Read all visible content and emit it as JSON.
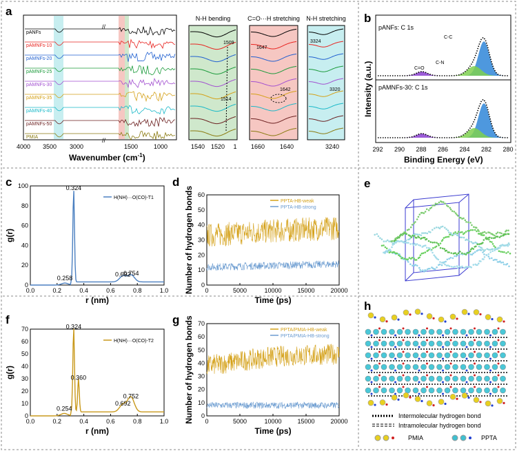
{
  "panel_labels": [
    "a",
    "b",
    "c",
    "d",
    "e",
    "f",
    "g",
    "h"
  ],
  "panel_a": {
    "samples": [
      {
        "name": "pANFs",
        "color": "#000000"
      },
      {
        "name": "pAMNFs-10",
        "color": "#e8231f"
      },
      {
        "name": "pAMNFs-20",
        "color": "#1f5fd0"
      },
      {
        "name": "pAMNFs-25",
        "color": "#1a9a3a"
      },
      {
        "name": "pAMNFs-30",
        "color": "#a24fd0"
      },
      {
        "name": "pAMNFs-35",
        "color": "#d4a017"
      },
      {
        "name": "pAMNFs-40",
        "color": "#18b8c8"
      },
      {
        "name": "pAMNFs-50",
        "color": "#6b1f1f"
      },
      {
        "name": "PMIA",
        "color": "#8a7a10"
      }
    ],
    "main_ticks": [
      "4000",
      "3500",
      "3000",
      "1500",
      "1000"
    ],
    "xlabel": "Wavenumber (cm",
    "xlabel_sup": "-1",
    "xlabel_end": ")",
    "zoom1": {
      "title": "N-H bending",
      "ticks": [
        "1540",
        "1520",
        "1"
      ],
      "ann": [
        "1509",
        "1514"
      ],
      "bg": "#cfe8cc"
    },
    "zoom2": {
      "title": "C=O···H stretching",
      "ticks": [
        "1660",
        "1640"
      ],
      "ann": [
        "1647",
        "1642"
      ],
      "bg": "#f6c7c2"
    },
    "zoom3": {
      "title": "N-H stretching",
      "ticks": [
        "3240"
      ],
      "ann": [
        "3324",
        "3320"
      ],
      "bg": "#c7eef0"
    }
  },
  "panel_b": {
    "top_label": "pANFs: C 1s",
    "bottom_label": "pAMNFs-30: C 1s",
    "peak_labels": [
      "C-C",
      "C-N",
      "C=O"
    ],
    "ylabel": "Intensity (a.u.)",
    "xlabel": "Binding Energy (eV)",
    "ticks": [
      "292",
      "290",
      "288",
      "286",
      "284",
      "282",
      "280"
    ]
  },
  "chart_data": [
    {
      "id": "c",
      "type": "line",
      "legend": "H(NH)···O(CO)-T1",
      "xlabel": "r (nm)",
      "ylabel": "g(r)",
      "xlim": [
        0.0,
        1.0
      ],
      "ylim": [
        0,
        100
      ],
      "xticks": [
        "0.0",
        "0.2",
        "0.4",
        "0.6",
        "0.8",
        "1.0"
      ],
      "yticks": [
        "0",
        "20",
        "40",
        "60",
        "80",
        "100"
      ],
      "peaks": [
        {
          "x": 0.258,
          "y": 2
        },
        {
          "x": 0.324,
          "y": 93
        },
        {
          "x": 0.692,
          "y": 6
        },
        {
          "x": 0.754,
          "y": 7
        }
      ],
      "peak_labels": [
        "0.258",
        "0.324",
        "0.692",
        "0.754"
      ],
      "color": "#4a7fc0"
    },
    {
      "id": "d",
      "type": "line",
      "series": [
        {
          "name": "PPTA-HB-weak",
          "mean": [
            33,
            36,
            38
          ],
          "color": "#d4a017"
        },
        {
          "name": "PPTA-HB-strong",
          "mean": [
            12,
            13,
            14
          ],
          "color": "#6a9bd0"
        }
      ],
      "xlabel": "Time (ps)",
      "ylabel": "Number of hydrogen bonds",
      "xlim": [
        0,
        20000
      ],
      "ylim": [
        0,
        60
      ],
      "xticks": [
        "0",
        "5000",
        "10000",
        "15000",
        "20000"
      ],
      "yticks": [
        "0",
        "10",
        "20",
        "30",
        "40",
        "50",
        "60"
      ]
    },
    {
      "id": "f",
      "type": "line",
      "legend": "H(NH)···O(CO)-T2",
      "xlabel": "r (nm)",
      "ylabel": "g(r)",
      "xlim": [
        0.0,
        1.0
      ],
      "ylim": [
        0,
        70
      ],
      "xticks": [
        "0.0",
        "0.2",
        "0.4",
        "0.6",
        "0.8",
        "1.0"
      ],
      "yticks": [
        "0",
        "10",
        "20",
        "30",
        "40",
        "50",
        "60",
        "70"
      ],
      "peaks": [
        {
          "x": 0.254,
          "y": 2
        },
        {
          "x": 0.324,
          "y": 68
        },
        {
          "x": 0.36,
          "y": 27
        },
        {
          "x": 0.692,
          "y": 6
        },
        {
          "x": 0.752,
          "y": 12
        }
      ],
      "peak_labels": [
        "0.254",
        "0.324",
        "0.360",
        "0.692",
        "0.752"
      ],
      "color": "#c8981a"
    },
    {
      "id": "g",
      "type": "line",
      "series": [
        {
          "name": "PPTA/PMIA-HB-weak",
          "mean": [
            38,
            45,
            47
          ],
          "color": "#d4a017"
        },
        {
          "name": "PPTA/PMIA-HB-strong",
          "mean": [
            8,
            8,
            8
          ],
          "color": "#6a9bd0"
        }
      ],
      "xlabel": "Time (ps)",
      "ylabel": "Number of hydrogen bonds",
      "xlim": [
        0,
        20000
      ],
      "ylim": [
        0,
        70
      ],
      "xticks": [
        "0",
        "5000",
        "10000",
        "15000",
        "20000"
      ],
      "yticks": [
        "0",
        "10",
        "20",
        "30",
        "40",
        "50",
        "60",
        "70"
      ]
    }
  ],
  "panel_h": {
    "legend_inter": "Intermolecular hydrogen bond",
    "legend_intra": "Intramolecular hydrogen bond",
    "legend_pmia": "PMIA",
    "legend_ppta": "PPTA"
  }
}
